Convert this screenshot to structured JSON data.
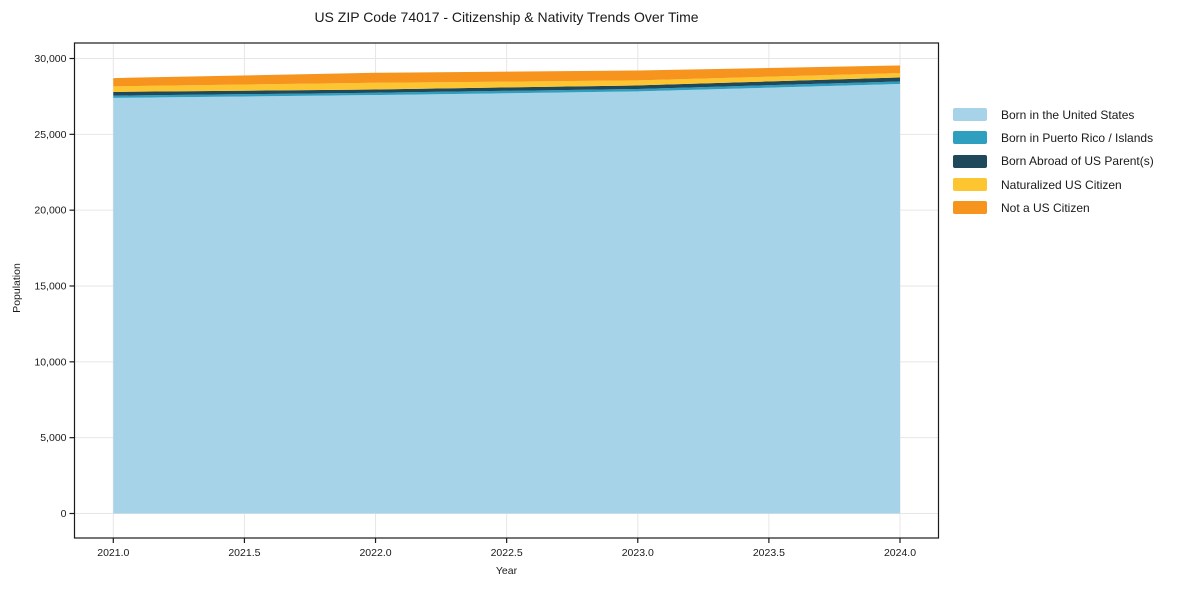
{
  "chart_data": {
    "type": "area",
    "stacked": true,
    "title": "US ZIP Code 74017 - Citizenship & Nativity Trends Over Time",
    "xlabel": "Year",
    "ylabel": "Population",
    "x": [
      2021,
      2022,
      2023,
      2024
    ],
    "xticks": [
      2021.0,
      2021.5,
      2022.0,
      2022.5,
      2023.0,
      2023.5,
      2024.0
    ],
    "xtick_labels": [
      "2021.0",
      "2021.5",
      "2022.0",
      "2022.5",
      "2023.0",
      "2023.5",
      "2024.0"
    ],
    "yticks": [
      0,
      5000,
      10000,
      15000,
      20000,
      25000,
      30000
    ],
    "ytick_labels": [
      "0",
      "5,000",
      "10,000",
      "15,000",
      "20,000",
      "25,000",
      "30,000"
    ],
    "ylim": [
      0,
      30000
    ],
    "xlim": [
      2020.86,
      2024.15
    ],
    "grid": true,
    "legend_position": "right of plot",
    "series": [
      {
        "name": "Born in the United States",
        "color": "#A7D3E8",
        "values": [
          27400,
          27590,
          27830,
          28320
        ]
      },
      {
        "name": "Born in Puerto Rico / Islands",
        "color": "#2E9FBF",
        "values": [
          150,
          155,
          160,
          170
        ]
      },
      {
        "name": "Born Abroad of US Parent(s)",
        "color": "#1F485A",
        "values": [
          245,
          215,
          235,
          260
        ]
      },
      {
        "name": "Naturalized US Citizen",
        "color": "#FDC52F",
        "values": [
          370,
          440,
          330,
          290
        ]
      },
      {
        "name": "Not a US Citizen",
        "color": "#F6941E",
        "values": [
          545,
          660,
          655,
          500
        ]
      }
    ],
    "totals": [
      28710,
      29060,
      29210,
      29540
    ]
  },
  "colors": {
    "background": "#ffffff",
    "spine": "#1a1a1a",
    "grid": "#e6e6e6",
    "text": "#1a1a1a"
  }
}
